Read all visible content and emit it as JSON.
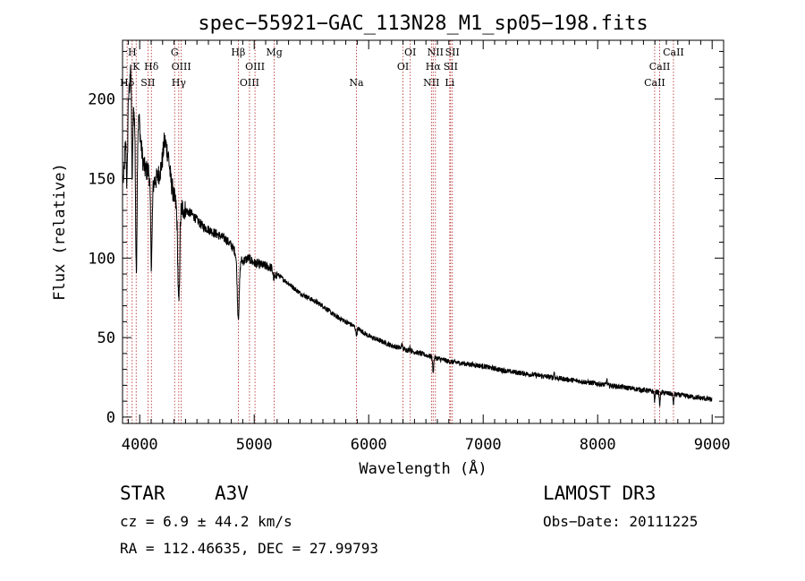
{
  "chart_data": {
    "type": "line",
    "title": "spec−55921−GAC_113N28_M1_sp05−198.fits",
    "xlabel": "Wavelength (Å)",
    "ylabel": "Flux (relative)",
    "xlim": [
      3850,
      9100
    ],
    "ylim": [
      -4,
      237
    ],
    "xticks": [
      4000,
      5000,
      6000,
      7000,
      8000,
      9000
    ],
    "yticks": [
      0,
      50,
      100,
      150,
      200
    ],
    "grid": false,
    "line_color": "#000000",
    "marker_color": "#b22222",
    "lines": [
      {
        "label": "Hδ",
        "wavelength": 3890,
        "row": 3
      },
      {
        "label": "H",
        "wavelength": 3934,
        "row": 1
      },
      {
        "label": "K",
        "wavelength": 3969,
        "row": 2
      },
      {
        "label": "Hδ",
        "wavelength": 4102,
        "row": 2
      },
      {
        "label": "SII",
        "wavelength": 4072,
        "row": 3
      },
      {
        "label": "G",
        "wavelength": 4305,
        "row": 1
      },
      {
        "label": "OIII",
        "wavelength": 4363,
        "row": 2
      },
      {
        "label": "Hγ",
        "wavelength": 4341,
        "row": 3
      },
      {
        "label": "Hβ",
        "wavelength": 4861,
        "row": 1
      },
      {
        "label": "OIII",
        "wavelength": 5007,
        "row": 2
      },
      {
        "label": "OIII",
        "wavelength": 4959,
        "row": 3
      },
      {
        "label": "Mg",
        "wavelength": 5175,
        "row": 1
      },
      {
        "label": "Na",
        "wavelength": 5893,
        "row": 3
      },
      {
        "label": "OI",
        "wavelength": 6363,
        "row": 1
      },
      {
        "label": "OI",
        "wavelength": 6300,
        "row": 2
      },
      {
        "label": "NII",
        "wavelength": 6583,
        "row": 1
      },
      {
        "label": "Hα",
        "wavelength": 6563,
        "row": 2
      },
      {
        "label": "NII",
        "wavelength": 6548,
        "row": 3
      },
      {
        "label": "SII",
        "wavelength": 6731,
        "row": 1
      },
      {
        "label": "SII",
        "wavelength": 6716,
        "row": 2
      },
      {
        "label": "Li",
        "wavelength": 6708,
        "row": 3
      },
      {
        "label": "CaII",
        "wavelength": 8662,
        "row": 1
      },
      {
        "label": "CaII",
        "wavelength": 8542,
        "row": 2
      },
      {
        "label": "CaII",
        "wavelength": 8498,
        "row": 3
      }
    ],
    "anchors": [
      [
        3860,
        150
      ],
      [
        3880,
        180
      ],
      [
        3905,
        200
      ],
      [
        3925,
        215
      ],
      [
        3945,
        195
      ],
      [
        3975,
        178
      ],
      [
        3995,
        188
      ],
      [
        4010,
        172
      ],
      [
        4030,
        160
      ],
      [
        4050,
        155
      ],
      [
        4075,
        155
      ],
      [
        4100,
        150
      ],
      [
        4120,
        148
      ],
      [
        4150,
        150
      ],
      [
        4180,
        155
      ],
      [
        4200,
        162
      ],
      [
        4230,
        170
      ],
      [
        4250,
        165
      ],
      [
        4270,
        150
      ],
      [
        4300,
        138
      ],
      [
        4330,
        130
      ],
      [
        4360,
        132
      ],
      [
        4400,
        130
      ],
      [
        4450,
        128
      ],
      [
        4500,
        124
      ],
      [
        4550,
        120
      ],
      [
        4600,
        118
      ],
      [
        4650,
        116
      ],
      [
        4700,
        114
      ],
      [
        4750,
        112
      ],
      [
        4800,
        108
      ],
      [
        4850,
        102
      ],
      [
        4900,
        98
      ],
      [
        4950,
        100
      ],
      [
        5000,
        97
      ],
      [
        5050,
        96
      ],
      [
        5100,
        95
      ],
      [
        5150,
        94
      ],
      [
        5200,
        90
      ],
      [
        5300,
        84
      ],
      [
        5400,
        78
      ],
      [
        5500,
        74
      ],
      [
        5600,
        70
      ],
      [
        5700,
        64
      ],
      [
        5800,
        60
      ],
      [
        5900,
        56
      ],
      [
        6000,
        51
      ],
      [
        6100,
        48
      ],
      [
        6200,
        45
      ],
      [
        6300,
        43
      ],
      [
        6400,
        41
      ],
      [
        6500,
        39
      ],
      [
        6600,
        37
      ],
      [
        6700,
        35
      ],
      [
        6800,
        34
      ],
      [
        7000,
        32
      ],
      [
        7200,
        29
      ],
      [
        7400,
        27
      ],
      [
        7600,
        25
      ],
      [
        7800,
        23
      ],
      [
        8000,
        21
      ],
      [
        8200,
        19
      ],
      [
        8400,
        17
      ],
      [
        8600,
        15
      ],
      [
        8800,
        13
      ],
      [
        9000,
        11
      ]
    ],
    "absorption": [
      {
        "center": 3889,
        "width": 6,
        "depth": 40
      },
      {
        "center": 3934,
        "width": 5,
        "depth": 55
      },
      {
        "center": 3970,
        "width": 6,
        "depth": 90
      },
      {
        "center": 4102,
        "width": 7,
        "depth": 52
      },
      {
        "center": 4341,
        "width": 8,
        "depth": 60
      },
      {
        "center": 4861,
        "width": 9,
        "depth": 38
      },
      {
        "center": 5175,
        "width": 10,
        "depth": 5
      },
      {
        "center": 5893,
        "width": 6,
        "depth": 4
      },
      {
        "center": 6563,
        "width": 5,
        "depth": 9
      },
      {
        "center": 8498,
        "width": 4,
        "depth": 6
      },
      {
        "center": 8542,
        "width": 4,
        "depth": 8
      },
      {
        "center": 8662,
        "width": 4,
        "depth": 6
      }
    ],
    "emission": [
      {
        "center": 3900,
        "width": 4,
        "height": 10
      },
      {
        "center": 3920,
        "width": 3,
        "height": 15
      },
      {
        "center": 4215,
        "width": 8,
        "height": 7
      },
      {
        "center": 6290,
        "width": 3,
        "height": 4
      },
      {
        "center": 6360,
        "width": 3,
        "height": 3
      },
      {
        "center": 7620,
        "width": 3,
        "height": 4
      },
      {
        "center": 8080,
        "width": 3,
        "height": 4
      }
    ]
  },
  "info": {
    "object_class": "STAR",
    "subclass": "A3V",
    "survey": "LAMOST DR3",
    "redshift": "cz = 6.9 ± 44.2 km/s",
    "coords": "RA = 112.46635, DEC =  27.99793",
    "obs_date": "Obs−Date: 20111225"
  }
}
